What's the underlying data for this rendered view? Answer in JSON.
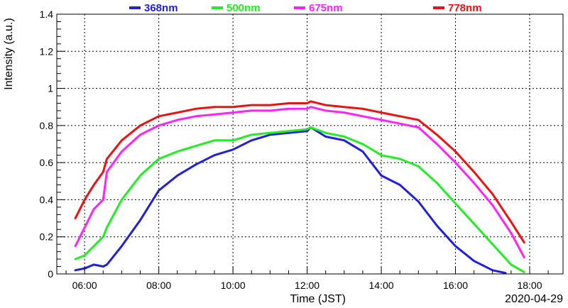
{
  "chart_data": {
    "type": "line",
    "title": "",
    "xlabel": "Time (JST)",
    "ylabel": "Intensity (a.u.)",
    "date_label": "2020-04-29",
    "x_unit": "hour of day (JST)",
    "xlim": [
      5.25,
      18.9
    ],
    "ylim": [
      0,
      1.4
    ],
    "x_ticks": [
      "06:00",
      "08:00",
      "10:00",
      "12:00",
      "14:00",
      "16:00",
      "18:00"
    ],
    "x_tick_values": [
      6,
      8,
      10,
      12,
      14,
      16,
      18
    ],
    "y_ticks": [
      "0",
      "0.2",
      "0.4",
      "0.6",
      "0.8",
      "1",
      "1.2",
      "1.4"
    ],
    "y_tick_values": [
      0,
      0.2,
      0.4,
      0.6,
      0.8,
      1.0,
      1.2,
      1.4
    ],
    "grid": true,
    "legend_position": "top",
    "series": [
      {
        "name": "368nm",
        "color": "#1f1fdc",
        "x": [
          5.75,
          6.0,
          6.25,
          6.5,
          6.6,
          7.0,
          7.5,
          8.0,
          8.5,
          9.0,
          9.5,
          10.0,
          10.5,
          11.0,
          11.5,
          12.0,
          12.1,
          12.5,
          13.0,
          13.5,
          14.0,
          14.5,
          15.0,
          15.5,
          16.0,
          16.5,
          17.0,
          17.35
        ],
        "values": [
          0.02,
          0.03,
          0.05,
          0.04,
          0.05,
          0.15,
          0.29,
          0.45,
          0.53,
          0.59,
          0.64,
          0.67,
          0.72,
          0.75,
          0.76,
          0.77,
          0.79,
          0.74,
          0.72,
          0.66,
          0.53,
          0.48,
          0.39,
          0.26,
          0.15,
          0.07,
          0.02,
          0.005
        ]
      },
      {
        "name": "500nm",
        "color": "#22ee22",
        "x": [
          5.75,
          6.0,
          6.25,
          6.5,
          6.6,
          7.0,
          7.5,
          8.0,
          8.5,
          9.0,
          9.5,
          10.0,
          10.5,
          11.0,
          11.5,
          12.0,
          12.1,
          12.5,
          13.0,
          13.5,
          14.0,
          14.5,
          15.0,
          15.5,
          16.0,
          16.5,
          17.0,
          17.5,
          17.85
        ],
        "values": [
          0.08,
          0.1,
          0.15,
          0.2,
          0.25,
          0.4,
          0.53,
          0.62,
          0.66,
          0.69,
          0.72,
          0.72,
          0.75,
          0.76,
          0.77,
          0.78,
          0.79,
          0.76,
          0.74,
          0.7,
          0.64,
          0.62,
          0.58,
          0.49,
          0.38,
          0.27,
          0.16,
          0.05,
          0.01
        ]
      },
      {
        "name": "675nm",
        "color": "#ff22ff",
        "x": [
          5.75,
          6.0,
          6.25,
          6.5,
          6.6,
          7.0,
          7.5,
          8.0,
          8.5,
          9.0,
          9.5,
          10.0,
          10.5,
          11.0,
          11.5,
          12.0,
          12.1,
          12.5,
          13.0,
          13.5,
          14.0,
          14.5,
          15.0,
          15.5,
          16.0,
          16.5,
          17.0,
          17.5,
          17.85
        ],
        "values": [
          0.15,
          0.25,
          0.35,
          0.4,
          0.55,
          0.66,
          0.75,
          0.8,
          0.83,
          0.85,
          0.86,
          0.87,
          0.88,
          0.88,
          0.89,
          0.89,
          0.9,
          0.88,
          0.87,
          0.85,
          0.83,
          0.81,
          0.79,
          0.7,
          0.6,
          0.49,
          0.37,
          0.22,
          0.09
        ]
      },
      {
        "name": "778nm",
        "color": "#ee1111",
        "x": [
          5.75,
          6.0,
          6.25,
          6.5,
          6.6,
          7.0,
          7.5,
          8.0,
          8.5,
          9.0,
          9.5,
          10.0,
          10.5,
          11.0,
          11.5,
          12.0,
          12.1,
          12.5,
          13.0,
          13.5,
          14.0,
          14.5,
          15.0,
          15.5,
          16.0,
          16.5,
          17.0,
          17.5,
          17.85
        ],
        "values": [
          0.3,
          0.4,
          0.48,
          0.55,
          0.62,
          0.72,
          0.8,
          0.85,
          0.87,
          0.89,
          0.9,
          0.9,
          0.91,
          0.91,
          0.92,
          0.92,
          0.93,
          0.91,
          0.9,
          0.89,
          0.87,
          0.85,
          0.83,
          0.75,
          0.66,
          0.55,
          0.43,
          0.28,
          0.17
        ]
      }
    ]
  }
}
